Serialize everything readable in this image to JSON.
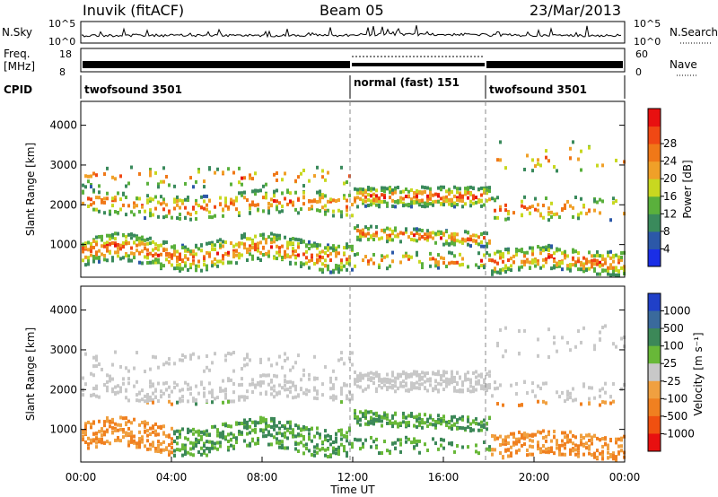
{
  "header": {
    "station": "Inuvik (fitACF)",
    "beam": "Beam 05",
    "date": "23/Mar/2013"
  },
  "top_panels": {
    "nsky_label": "N.Sky",
    "nsky_ticks": [
      "10^5",
      "10^0"
    ],
    "nsearch_label": "N.Search",
    "nsearch_ticks": [
      "10^5",
      "10^0"
    ],
    "freq_label_1": "Freq.",
    "freq_label_2": "[MHz]",
    "freq_ticks": [
      "18",
      "8"
    ],
    "nave_label": "Nave",
    "nave_ticks": [
      "60",
      "0"
    ],
    "cpid_label": "CPID",
    "cpid_segments": [
      {
        "label": "twofsound 3501",
        "start_hour": 0,
        "end_hour": 12
      },
      {
        "label": "normal (fast) 151",
        "start_hour": 12,
        "end_hour": 18
      },
      {
        "label": "twofsound 3501",
        "start_hour": 18,
        "end_hour": 24
      }
    ]
  },
  "colors": {
    "power": [
      "#1a2ee6",
      "#2c58a8",
      "#3a8a5c",
      "#5ab03c",
      "#c8d820",
      "#f0a028",
      "#f07818",
      "#f04814",
      "#e81010"
    ],
    "velocity": [
      "#2040c8",
      "#3a6a9c",
      "#3c8858",
      "#68b838",
      "#c8c8c8",
      "#f0a040",
      "#f08020",
      "#f05010",
      "#e81010"
    ]
  },
  "chart_data": [
    {
      "type": "heatmap",
      "title": "Power",
      "ylabel": "Slant Range [km]",
      "xlabel": "",
      "xlim": [
        "00:00",
        "00:00"
      ],
      "ylim": [
        180,
        4600
      ],
      "y_ticks": [
        "1000",
        "2000",
        "3000",
        "4000"
      ],
      "x_ticks": [
        "00:00",
        "04:00",
        "08:00",
        "12:00",
        "16:00",
        "20:00",
        "00:00"
      ],
      "colorbar": {
        "label": "Power [dB]",
        "ticks": [
          "4",
          "8",
          "12",
          "16",
          "20",
          "24",
          "28"
        ],
        "range": [
          0,
          30
        ]
      }
    },
    {
      "type": "heatmap",
      "title": "Velocity",
      "ylabel": "Slant Range [km]",
      "xlabel": "Time UT",
      "xlim": [
        "00:00",
        "00:00"
      ],
      "ylim": [
        180,
        4600
      ],
      "y_ticks": [
        "1000",
        "2000",
        "3000",
        "4000"
      ],
      "x_ticks": [
        "00:00",
        "04:00",
        "08:00",
        "12:00",
        "16:00",
        "20:00",
        "00:00"
      ],
      "colorbar": {
        "label": "Velocity [m s⁻¹]",
        "ticks": [
          "1000",
          "500",
          "100",
          "25",
          "-25",
          "-100",
          "-500",
          "-1000"
        ]
      }
    }
  ]
}
